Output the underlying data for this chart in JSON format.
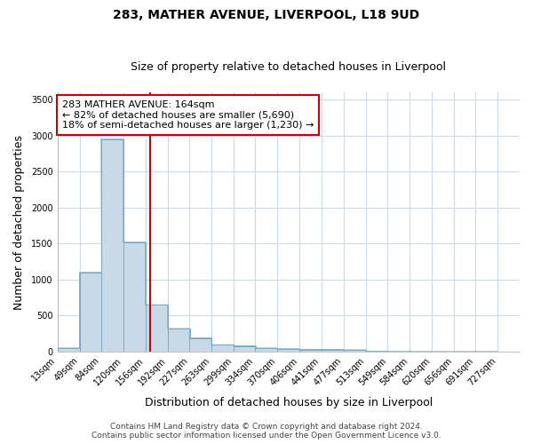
{
  "title": "283, MATHER AVENUE, LIVERPOOL, L18 9UD",
  "subtitle": "Size of property relative to detached houses in Liverpool",
  "xlabel": "Distribution of detached houses by size in Liverpool",
  "ylabel": "Number of detached properties",
  "bin_labels": [
    "13sqm",
    "49sqm",
    "84sqm",
    "120sqm",
    "156sqm",
    "192sqm",
    "227sqm",
    "263sqm",
    "299sqm",
    "334sqm",
    "370sqm",
    "406sqm",
    "441sqm",
    "477sqm",
    "513sqm",
    "549sqm",
    "584sqm",
    "620sqm",
    "656sqm",
    "691sqm",
    "727sqm"
  ],
  "bin_edges": [
    13,
    49,
    84,
    120,
    156,
    192,
    227,
    263,
    299,
    334,
    370,
    406,
    441,
    477,
    513,
    549,
    584,
    620,
    656,
    691,
    727
  ],
  "bar_heights": [
    50,
    1100,
    2950,
    1520,
    650,
    320,
    190,
    95,
    80,
    50,
    40,
    30,
    30,
    25,
    5,
    3,
    2,
    1,
    1,
    1
  ],
  "bar_color": "#c9d9e8",
  "bar_edge_color": "#7aaac8",
  "bar_edge_width": 0.7,
  "red_line_x": 164,
  "annotation_line1": "283 MATHER AVENUE: 164sqm",
  "annotation_line2": "← 82% of detached houses are smaller (5,690)",
  "annotation_line3": "18% of semi-detached houses are larger (1,230) →",
  "annotation_box_facecolor": "#ffffff",
  "annotation_border_color": "#cc0000",
  "ylim": [
    0,
    3600
  ],
  "yticks": [
    0,
    500,
    1000,
    1500,
    2000,
    2500,
    3000,
    3500
  ],
  "footer_line1": "Contains HM Land Registry data © Crown copyright and database right 2024.",
  "footer_line2": "Contains public sector information licensed under the Open Government Licence v3.0.",
  "bg_color": "#ffffff",
  "plot_bg_color": "#ffffff",
  "grid_color": "#ccd9e8",
  "title_fontsize": 10,
  "subtitle_fontsize": 9,
  "axis_label_fontsize": 9,
  "tick_fontsize": 7,
  "footer_fontsize": 6.5,
  "annotation_fontsize": 8
}
